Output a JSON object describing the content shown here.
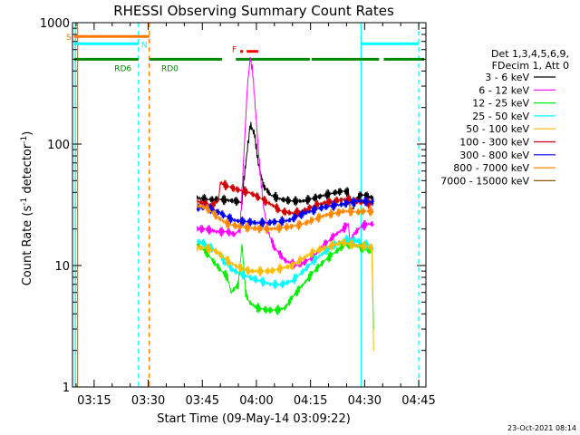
{
  "chart_data": {
    "type": "line",
    "title": "RHESSI Observing Summary Count Rates",
    "xlabel": "Start Time (09-May-14 03:09:22)",
    "ylabel_prefix": "Count Rate (s",
    "ylabel_mid": " detector",
    "ylabel_suffix": ")",
    "ylabel_exp": "-1",
    "yscale": "log",
    "ylim": [
      1,
      1000
    ],
    "xlim": [
      "03:09",
      "04:47"
    ],
    "xlim_min": [
      189,
      287
    ],
    "x_ticks": [
      {
        "label": "03:15",
        "t": 195
      },
      {
        "label": "03:30",
        "t": 210
      },
      {
        "label": "03:45",
        "t": 225
      },
      {
        "label": "04:00",
        "t": 240
      },
      {
        "label": "04:15",
        "t": 255
      },
      {
        "label": "04:30",
        "t": 270
      },
      {
        "label": "04:45",
        "t": 285
      }
    ],
    "y_ticks": [
      {
        "label": "1",
        "v": 1
      },
      {
        "label": "10",
        "v": 10
      },
      {
        "label": "100",
        "v": 100
      },
      {
        "label": "1000",
        "v": 1000
      }
    ],
    "legend_header": [
      "Det 1,3,4,5,6,9,",
      "FDecim 1, Att 0"
    ],
    "legend_position": "right",
    "series": [
      {
        "name": "3 - 6 keV",
        "color": "#000000",
        "points": [
          [
            223.5,
            36
          ],
          [
            226,
            35
          ],
          [
            230,
            35
          ],
          [
            234,
            34
          ],
          [
            236,
            33
          ],
          [
            236.5,
            50
          ],
          [
            237.5,
            90
          ],
          [
            238.3,
            145
          ],
          [
            239.5,
            120
          ],
          [
            240.5,
            70
          ],
          [
            242,
            45
          ],
          [
            244,
            38
          ],
          [
            247,
            35
          ],
          [
            250,
            34
          ],
          [
            253,
            34
          ],
          [
            256,
            36
          ],
          [
            259,
            38
          ],
          [
            262,
            40
          ],
          [
            264,
            41
          ],
          [
            265.5,
            40
          ],
          [
            266,
            28
          ],
          [
            267,
            30
          ],
          [
            268,
            36
          ],
          [
            269,
            38
          ],
          [
            270,
            38
          ],
          [
            271,
            37
          ],
          [
            272.5,
            36
          ]
        ]
      },
      {
        "name": "6 - 12 keV",
        "color": "#ff00ff",
        "points": [
          [
            223.5,
            20
          ],
          [
            226,
            20
          ],
          [
            229,
            19
          ],
          [
            232,
            19
          ],
          [
            234,
            18
          ],
          [
            235.5,
            20
          ],
          [
            236.5,
            80
          ],
          [
            237.5,
            300
          ],
          [
            238.3,
            520
          ],
          [
            239,
            380
          ],
          [
            240,
            150
          ],
          [
            241,
            60
          ],
          [
            242,
            30
          ],
          [
            243.5,
            18
          ],
          [
            245,
            14
          ],
          [
            248,
            11
          ],
          [
            251,
            10
          ],
          [
            253,
            10.5
          ],
          [
            256,
            12
          ],
          [
            259,
            15
          ],
          [
            262,
            18
          ],
          [
            264,
            20
          ],
          [
            265.5,
            22
          ],
          [
            266,
            15
          ],
          [
            267,
            18
          ],
          [
            269,
            21
          ],
          [
            271,
            22
          ],
          [
            272.5,
            22
          ]
        ]
      },
      {
        "name": "12 - 25 keV",
        "color": "#00ee00",
        "points": [
          [
            223.5,
            15
          ],
          [
            226,
            13
          ],
          [
            229,
            10
          ],
          [
            232,
            8
          ],
          [
            233,
            6
          ],
          [
            234,
            6.5
          ],
          [
            235,
            7
          ],
          [
            236,
            15
          ],
          [
            237,
            6
          ],
          [
            238,
            5
          ],
          [
            240,
            4.5
          ],
          [
            243,
            4.3
          ],
          [
            246,
            4.3
          ],
          [
            248,
            4.5
          ],
          [
            250,
            5.5
          ],
          [
            253,
            7
          ],
          [
            256,
            9
          ],
          [
            259,
            11
          ],
          [
            262,
            13
          ],
          [
            264,
            14.5
          ],
          [
            266,
            15
          ],
          [
            268,
            14.5
          ],
          [
            270,
            13.5
          ],
          [
            272,
            13.5
          ],
          [
            272.5,
            3
          ]
        ]
      },
      {
        "name": "25 - 50 keV",
        "color": "#00ffff",
        "points": [
          [
            223.5,
            16
          ],
          [
            226,
            15
          ],
          [
            229,
            13
          ],
          [
            232,
            10
          ],
          [
            234,
            9
          ],
          [
            236,
            8.5
          ],
          [
            238,
            8
          ],
          [
            241,
            7.5
          ],
          [
            244,
            7
          ],
          [
            247,
            7
          ],
          [
            250,
            7.5
          ],
          [
            253,
            9
          ],
          [
            256,
            11
          ],
          [
            259,
            13
          ],
          [
            262,
            15
          ],
          [
            264,
            16
          ],
          [
            266,
            16.5
          ],
          [
            268,
            16
          ],
          [
            270,
            15
          ],
          [
            272.5,
            14
          ]
        ]
      },
      {
        "name": "50 - 100 keV",
        "color": "#ffbb00",
        "points": [
          [
            223.5,
            14
          ],
          [
            226,
            14
          ],
          [
            229,
            13
          ],
          [
            232,
            11
          ],
          [
            234,
            10
          ],
          [
            236,
            9.5
          ],
          [
            238,
            9
          ],
          [
            241,
            9
          ],
          [
            244,
            9
          ],
          [
            247,
            9.5
          ],
          [
            250,
            10
          ],
          [
            253,
            11.5
          ],
          [
            256,
            13
          ],
          [
            259,
            14
          ],
          [
            262,
            15
          ],
          [
            264,
            15.5
          ],
          [
            266,
            15
          ],
          [
            268,
            14.5
          ],
          [
            270,
            14.5
          ],
          [
            272,
            14
          ],
          [
            272.5,
            2
          ]
        ]
      },
      {
        "name": "100 - 300 keV",
        "color": "#cc0000",
        "points": [
          [
            223.5,
            34
          ],
          [
            226,
            32
          ],
          [
            228,
            31
          ],
          [
            229.5,
            35
          ],
          [
            230,
            48
          ],
          [
            232,
            45
          ],
          [
            235,
            42
          ],
          [
            238,
            40
          ],
          [
            241,
            36
          ],
          [
            244,
            32
          ],
          [
            247,
            28
          ],
          [
            250,
            27
          ],
          [
            253,
            28
          ],
          [
            256,
            31
          ],
          [
            259,
            33
          ],
          [
            262,
            34
          ],
          [
            264,
            35
          ],
          [
            266,
            35
          ],
          [
            268,
            34
          ],
          [
            270,
            33
          ],
          [
            272.5,
            32
          ]
        ]
      },
      {
        "name": "300 - 800 keV",
        "color": "#0000ee",
        "points": [
          [
            223.5,
            30
          ],
          [
            226,
            30
          ],
          [
            228,
            29
          ],
          [
            230,
            27
          ],
          [
            232,
            25
          ],
          [
            234,
            23.5
          ],
          [
            237,
            23
          ],
          [
            240,
            22.5
          ],
          [
            243,
            22.5
          ],
          [
            246,
            23
          ],
          [
            249,
            23.5
          ],
          [
            252,
            26
          ],
          [
            255,
            28
          ],
          [
            258,
            30
          ],
          [
            261,
            31
          ],
          [
            264,
            32
          ],
          [
            266,
            33
          ],
          [
            268,
            34
          ],
          [
            270,
            34
          ],
          [
            272.5,
            33
          ]
        ]
      },
      {
        "name": "800 - 7000 keV",
        "color": "#ff8800",
        "points": [
          [
            223.5,
            31
          ],
          [
            226,
            30
          ],
          [
            228,
            27
          ],
          [
            230,
            24
          ],
          [
            232,
            22
          ],
          [
            235,
            21
          ],
          [
            238,
            20.5
          ],
          [
            241,
            20
          ],
          [
            244,
            20
          ],
          [
            247,
            20.5
          ],
          [
            250,
            21
          ],
          [
            253,
            22
          ],
          [
            256,
            24
          ],
          [
            259,
            26
          ],
          [
            262,
            27
          ],
          [
            264,
            28
          ],
          [
            266,
            28
          ],
          [
            268,
            27.5
          ],
          [
            270,
            28
          ],
          [
            272.5,
            28
          ]
        ]
      },
      {
        "name": "7000 - 15000 keV",
        "color": "#8b5a00",
        "points": []
      }
    ],
    "attenuator_bar": {
      "label": "S",
      "color": "#ff7700",
      "from": 189.5,
      "to": 210.3,
      "level": 770
    },
    "saa_bar": {
      "label": "N",
      "color": "#00ffff",
      "segments": [
        [
          189.5,
          207.3
        ],
        [
          269,
          285
        ]
      ],
      "level": 670
    },
    "flare_bar": {
      "label": "F",
      "color": "#ff0000",
      "segments": [
        [
          235.5,
          236.3
        ],
        [
          237.3,
          240.5
        ]
      ],
      "level": 580
    },
    "decim_bar": {
      "color": "#008800",
      "level": 500,
      "segments": [
        [
          189.5,
          207.3
        ],
        [
          210.3,
          230.5
        ],
        [
          234.3,
          254.8
        ],
        [
          255.3,
          274
        ],
        [
          275.3,
          286.5
        ]
      ],
      "labels": [
        {
          "text": "RD6",
          "t": 203
        },
        {
          "text": "RD0",
          "t": 216
        }
      ]
    },
    "vlines": [
      {
        "t": 189.8,
        "color": "#00ffff",
        "dashed": false
      },
      {
        "t": 190.4,
        "color": "#ff7700",
        "dashed": false
      },
      {
        "t": 207.3,
        "color": "#00ffff",
        "dashed": true
      },
      {
        "t": 210.3,
        "color": "#ff7700",
        "dashed": true
      },
      {
        "t": 269,
        "color": "#00ffff",
        "dashed": false
      },
      {
        "t": 285,
        "color": "#00ffff",
        "dashed": true
      }
    ]
  },
  "footer_timestamp": "23-Oct-2021 08:14"
}
